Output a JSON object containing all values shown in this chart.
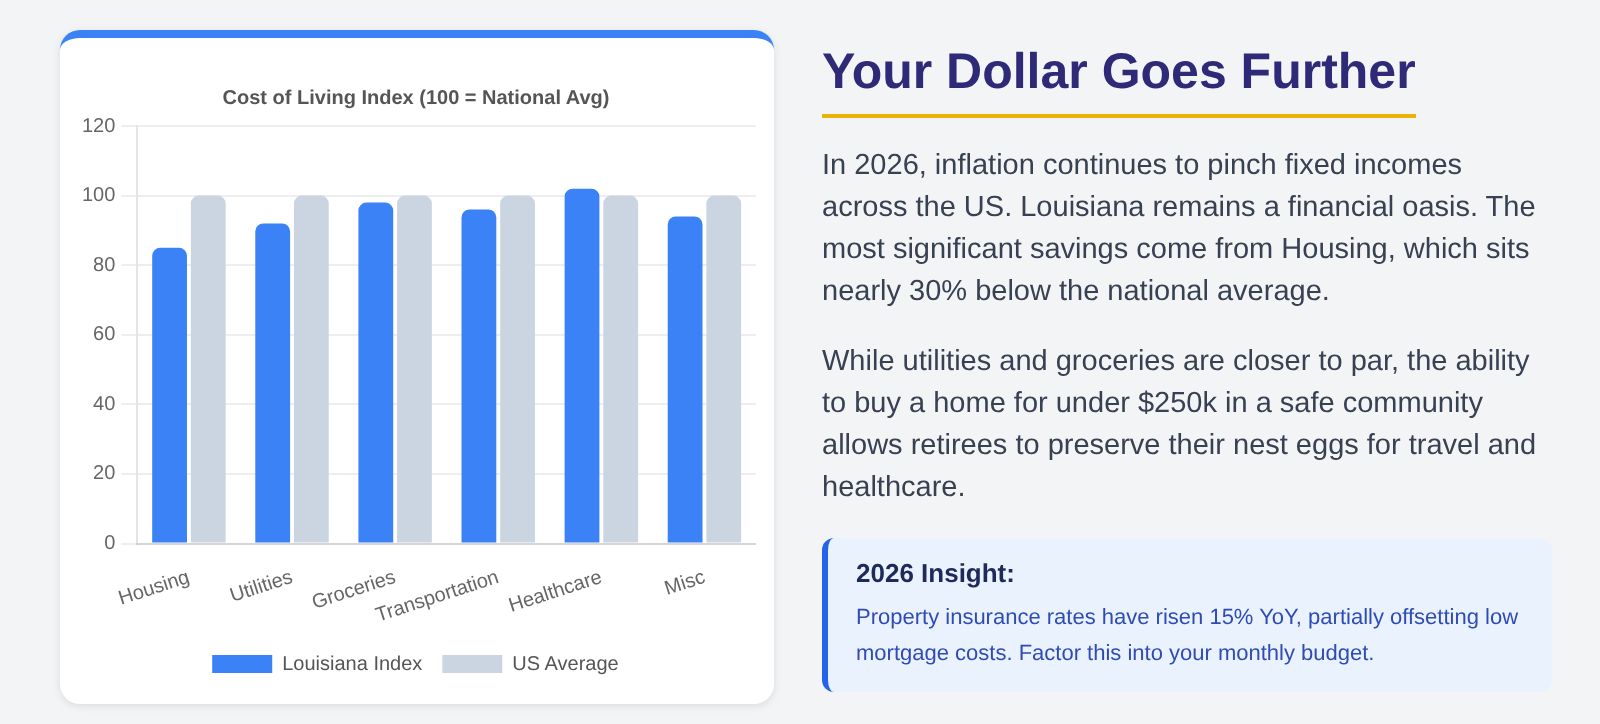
{
  "chart_data": {
    "type": "bar",
    "title": "Cost of Living Index (100 = National Avg)",
    "categories": [
      "Housing",
      "Utilities",
      "Groceries",
      "Transportation",
      "Healthcare",
      "Misc"
    ],
    "series": [
      {
        "name": "Louisiana Index",
        "color": "#3b82f6",
        "values": [
          85,
          92,
          98,
          96,
          102,
          94
        ]
      },
      {
        "name": "US Average",
        "color": "#cbd5e1",
        "values": [
          100,
          100,
          100,
          100,
          100,
          100
        ]
      }
    ],
    "ylim": [
      0,
      120
    ],
    "yticks": [
      0,
      20,
      40,
      60,
      80,
      100,
      120
    ],
    "grid": "y",
    "legend": "bottom",
    "annotations": [
      "Your Dollar Goes Further",
      "In 2026, inflation continues to pinch fixed incomes across the US. Louisiana remains a financial oasis. The most significant savings come from Housing, which sits nearly 30% below the national average.",
      "While utilities and groceries are closer to par, the ability to buy a home for under $250k in a safe community allows retirees to preserve their nest eggs for travel and healthcare.",
      "2026 Insight:",
      "Property insurance rates have risen 15% YoY, partially offsetting low mortgage costs. Factor this into your monthly budget."
    ]
  }
}
